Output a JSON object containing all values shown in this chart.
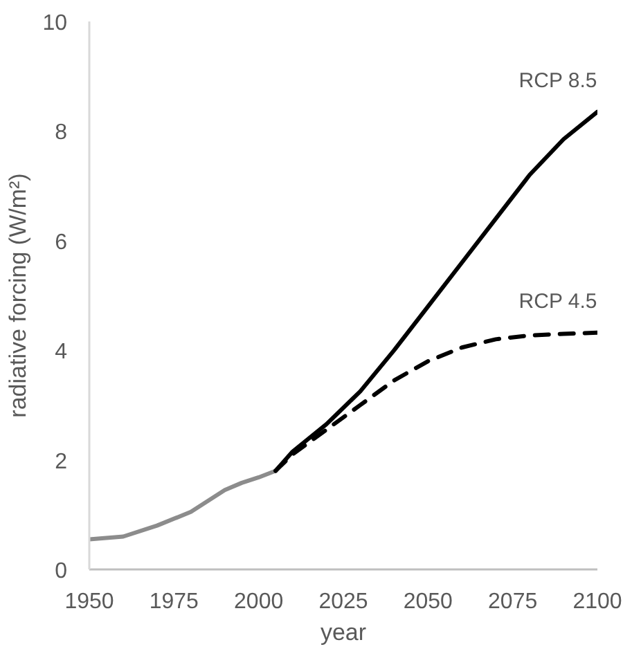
{
  "chart_data": {
    "type": "line",
    "xlabel": "year",
    "ylabel": "radiative forcing (W/m²)",
    "xlim": [
      1950,
      2100
    ],
    "xticks": [
      1950,
      1975,
      2000,
      2025,
      2050,
      2075,
      2100
    ],
    "ylim": [
      0,
      10
    ],
    "yticks": [
      0,
      2,
      4,
      6,
      8,
      10
    ],
    "grid": false,
    "marker": "none",
    "series": [
      {
        "color": "#8c8c8c",
        "line_style": "solid",
        "x": [
          1950,
          1960,
          1970,
          1980,
          1990,
          1995,
          2000,
          2005
        ],
        "values": [
          0.55,
          0.6,
          0.8,
          1.05,
          1.45,
          1.58,
          1.68,
          1.8
        ]
      },
      {
        "name": "RCP 8.5",
        "color": "#000000",
        "line_style": "solid",
        "x": [
          2005,
          2010,
          2020,
          2030,
          2040,
          2050,
          2060,
          2070,
          2080,
          2090,
          2100
        ],
        "values": [
          1.8,
          2.15,
          2.65,
          3.25,
          4.0,
          4.8,
          5.6,
          6.4,
          7.2,
          7.85,
          8.35
        ]
      },
      {
        "name": "RCP 4.5",
        "color": "#000000",
        "line_style": "dashed",
        "x": [
          2005,
          2010,
          2020,
          2030,
          2040,
          2050,
          2060,
          2070,
          2080,
          2090,
          2100
        ],
        "values": [
          1.8,
          2.1,
          2.55,
          3.0,
          3.45,
          3.8,
          4.05,
          4.2,
          4.27,
          4.3,
          4.32
        ]
      }
    ]
  }
}
